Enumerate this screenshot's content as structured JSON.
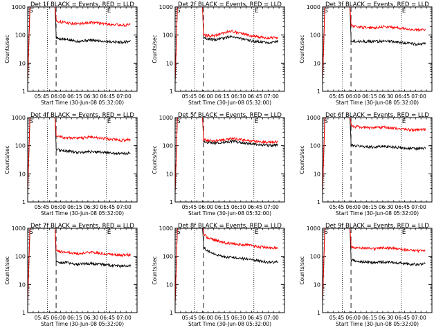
{
  "figure": {
    "x_ticks": [
      "05:45",
      "06:00",
      "06:15",
      "06:30",
      "06:45",
      "07:00"
    ],
    "x_tick_values": [
      -13,
      2,
      17,
      32,
      47,
      62
    ],
    "x_range": [
      -26,
      74
    ],
    "y_range": [
      1,
      1000
    ],
    "y_scale": "log",
    "y_ticks": [
      "1",
      "10",
      "100",
      "1000"
    ],
    "vline_dotted": [
      -8,
      46
    ],
    "vline_dashed": [
      0
    ],
    "marker_s": "S",
    "marker_e": "E",
    "colors": {
      "events": "#000000",
      "lld": "#ff0000"
    }
  },
  "chart_data": [
    {
      "type": "line",
      "title": "Det 1f BLACK = Events, RED = LLD",
      "xlabel": "Start Time (30-Jun-08 05:32:00)",
      "ylabel": "Counts/sec",
      "ylim": [
        1,
        1000
      ],
      "y_scale": "log",
      "series": [
        {
          "name": "Events",
          "x": [
            0,
            3,
            10,
            20,
            30,
            40,
            50,
            60,
            68
          ],
          "values": [
            80,
            75,
            68,
            60,
            66,
            62,
            58,
            56,
            60
          ]
        },
        {
          "name": "LLD",
          "x": [
            0,
            3,
            10,
            20,
            30,
            40,
            50,
            60,
            68
          ],
          "values": [
            330,
            300,
            270,
            250,
            280,
            265,
            240,
            225,
            230
          ]
        }
      ]
    },
    {
      "type": "line",
      "title": "Det 2f BLACK = Events, RED = LLD",
      "xlabel": "Start Time (30-Jun-08 05:32:00)",
      "ylabel": "Counts/sec",
      "ylim": [
        1,
        1000
      ],
      "y_scale": "log",
      "series": [
        {
          "name": "Events",
          "x": [
            0,
            3,
            10,
            20,
            25,
            30,
            40,
            50,
            60,
            68
          ],
          "values": [
            80,
            75,
            68,
            80,
            92,
            82,
            65,
            58,
            55,
            60
          ]
        },
        {
          "name": "LLD",
          "x": [
            0,
            3,
            10,
            20,
            25,
            30,
            40,
            50,
            60,
            68
          ],
          "values": [
            100,
            95,
            95,
            125,
            140,
            125,
            100,
            85,
            80,
            85
          ]
        }
      ]
    },
    {
      "type": "line",
      "title": "Det 3f BLACK = Events, RED = LLD",
      "xlabel": "Start Time (30-Jun-08 05:32:00)",
      "ylabel": "Counts/sec",
      "ylim": [
        1,
        1000
      ],
      "y_scale": "log",
      "series": [
        {
          "name": "Events",
          "x": [
            0,
            3,
            10,
            20,
            30,
            40,
            50,
            60,
            68
          ],
          "values": [
            65,
            62,
            60,
            58,
            62,
            58,
            52,
            48,
            50
          ]
        },
        {
          "name": "LLD",
          "x": [
            0,
            3,
            10,
            20,
            30,
            40,
            50,
            60,
            68
          ],
          "values": [
            220,
            200,
            190,
            180,
            200,
            185,
            165,
            150,
            160
          ]
        }
      ]
    },
    {
      "type": "line",
      "title": "Det 4f BLACK = Events, RED = LLD",
      "xlabel": "Start Time (30-Jun-08 05:32:00)",
      "ylabel": "Counts/sec",
      "ylim": [
        1,
        1000
      ],
      "y_scale": "log",
      "series": [
        {
          "name": "Events",
          "x": [
            0,
            3,
            10,
            20,
            30,
            40,
            50,
            60,
            68
          ],
          "values": [
            75,
            70,
            65,
            58,
            62,
            60,
            55,
            52,
            55
          ]
        },
        {
          "name": "LLD",
          "x": [
            0,
            3,
            10,
            20,
            30,
            40,
            50,
            60,
            68
          ],
          "values": [
            230,
            210,
            190,
            180,
            205,
            190,
            170,
            155,
            165
          ]
        }
      ]
    },
    {
      "type": "line",
      "title": "Det 5f BLACK = Events, RED = LLD",
      "xlabel": "Start Time (30-Jun-08 05:32:00)",
      "ylabel": "Counts/sec",
      "ylim": [
        1,
        1000
      ],
      "y_scale": "log",
      "series": [
        {
          "name": "Events",
          "x": [
            0,
            3,
            10,
            20,
            27,
            35,
            45,
            55,
            62,
            68
          ],
          "values": [
            140,
            130,
            125,
            135,
            145,
            130,
            115,
            105,
            100,
            110
          ]
        },
        {
          "name": "LLD",
          "x": [
            0,
            3,
            10,
            20,
            27,
            35,
            45,
            55,
            62,
            68
          ],
          "values": [
            165,
            155,
            150,
            165,
            180,
            165,
            145,
            135,
            130,
            140
          ]
        }
      ]
    },
    {
      "type": "line",
      "title": "Det 6f BLACK = Events, RED = LLD",
      "xlabel": "Start Time (30-Jun-08 05:32:00)",
      "ylabel": "Counts/sec",
      "ylim": [
        1,
        1000
      ],
      "y_scale": "log",
      "series": [
        {
          "name": "Events",
          "x": [
            0,
            3,
            10,
            20,
            30,
            40,
            50,
            60,
            68
          ],
          "values": [
            105,
            100,
            95,
            90,
            95,
            90,
            82,
            78,
            82
          ]
        },
        {
          "name": "LLD",
          "x": [
            0,
            3,
            10,
            20,
            30,
            40,
            50,
            60,
            68
          ],
          "values": [
            520,
            480,
            450,
            430,
            450,
            420,
            380,
            360,
            380
          ]
        }
      ]
    },
    {
      "type": "line",
      "title": "Det 7f BLACK = Events, RED = LLD",
      "xlabel": "Start Time (30-Jun-08 05:32:00)",
      "ylabel": "Counts/sec",
      "ylim": [
        1,
        1000
      ],
      "y_scale": "log",
      "series": [
        {
          "name": "Events",
          "x": [
            0,
            3,
            10,
            20,
            30,
            40,
            50,
            60,
            68
          ],
          "values": [
            65,
            62,
            60,
            52,
            56,
            54,
            48,
            45,
            48
          ]
        },
        {
          "name": "LLD",
          "x": [
            0,
            3,
            10,
            20,
            30,
            40,
            50,
            60,
            68
          ],
          "values": [
            160,
            150,
            140,
            125,
            140,
            132,
            118,
            110,
            115
          ]
        }
      ]
    },
    {
      "type": "line",
      "title": "Det 8f BLACK = Events, RED = LLD",
      "xlabel": "Start Time (30-Jun-08 05:32:00)",
      "ylabel": "Counts/sec",
      "ylim": [
        1,
        1000
      ],
      "y_scale": "log",
      "series": [
        {
          "name": "Events",
          "x": [
            0,
            3,
            10,
            20,
            30,
            40,
            50,
            60,
            68
          ],
          "values": [
            220,
            160,
            120,
            95,
            90,
            80,
            70,
            62,
            65
          ]
        },
        {
          "name": "LLD",
          "x": [
            0,
            3,
            10,
            20,
            30,
            40,
            50,
            60,
            68
          ],
          "values": [
            650,
            480,
            380,
            300,
            280,
            250,
            220,
            200,
            205
          ]
        }
      ]
    },
    {
      "type": "line",
      "title": "Det 9f BLACK = Events, RED = LLD",
      "xlabel": "Start Time (30-Jun-08 05:32:00)",
      "ylabel": "Counts/sec",
      "ylim": [
        1,
        1000
      ],
      "y_scale": "log",
      "series": [
        {
          "name": "Events",
          "x": [
            0,
            3,
            10,
            20,
            30,
            40,
            50,
            60,
            68
          ],
          "values": [
            75,
            70,
            65,
            60,
            64,
            60,
            55,
            52,
            55
          ]
        },
        {
          "name": "LLD",
          "x": [
            0,
            3,
            10,
            20,
            30,
            40,
            50,
            60,
            68
          ],
          "values": [
            230,
            210,
            200,
            185,
            200,
            190,
            170,
            158,
            165
          ]
        }
      ]
    }
  ]
}
